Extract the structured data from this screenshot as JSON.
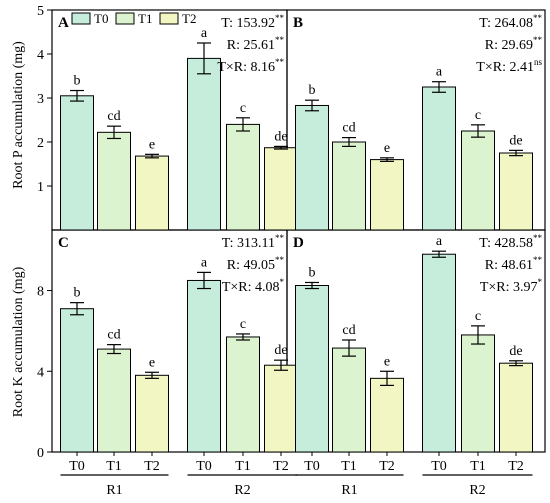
{
  "legend": {
    "entries": [
      {
        "label": "T0",
        "color": "#c6ecdc"
      },
      {
        "label": "T1",
        "color": "#dcf3cf"
      },
      {
        "label": "T2",
        "color": "#f1f6c2"
      }
    ]
  },
  "colors": {
    "T0": "#c6ecdc",
    "T1": "#dcf3cf",
    "T2": "#f1f6c2",
    "stroke": "#000000"
  },
  "y_axis_labels": {
    "top": "Root P accumulation (mg)",
    "bottom": "Root K accumulation (mg)"
  },
  "x_groups": [
    "R1",
    "R2"
  ],
  "chart_data": [
    {
      "type": "bar",
      "panel": "A",
      "ylabel": "Root P accumulation (mg)",
      "ylim": [
        0,
        5
      ],
      "yticks": [
        1,
        2,
        3,
        4,
        5
      ],
      "groups": [
        "R1",
        "R2"
      ],
      "categories": [
        "T0",
        "T1",
        "T2"
      ],
      "series": [
        {
          "group": "R1",
          "values": [
            3.05,
            2.22,
            1.68
          ],
          "errors": [
            0.12,
            0.14,
            0.04
          ],
          "letters": [
            "b",
            "cd",
            "e"
          ]
        },
        {
          "group": "R2",
          "values": [
            3.9,
            2.4,
            1.87
          ],
          "errors": [
            0.35,
            0.15,
            0.03
          ],
          "letters": [
            "a",
            "c",
            "de"
          ]
        }
      ],
      "stats": [
        {
          "text": "T: 153.92",
          "sig": "**"
        },
        {
          "text": "R: 25.61",
          "sig": "**"
        },
        {
          "text": "T×R: 8.16",
          "sig": "**"
        }
      ]
    },
    {
      "type": "bar",
      "panel": "B",
      "ylabel": "",
      "ylim": [
        0,
        5
      ],
      "yticks": [
        1,
        2,
        3,
        4,
        5
      ],
      "groups": [
        "R1",
        "R2"
      ],
      "categories": [
        "T0",
        "T1",
        "T2"
      ],
      "series": [
        {
          "group": "R1",
          "values": [
            2.83,
            2.0,
            1.6
          ],
          "errors": [
            0.12,
            0.1,
            0.04
          ],
          "letters": [
            "b",
            "cd",
            "e"
          ]
        },
        {
          "group": "R2",
          "values": [
            3.25,
            2.25,
            1.75
          ],
          "errors": [
            0.12,
            0.14,
            0.06
          ],
          "letters": [
            "a",
            "c",
            "de"
          ]
        }
      ],
      "stats": [
        {
          "text": "T: 264.08",
          "sig": "**"
        },
        {
          "text": "R: 29.69",
          "sig": "**"
        },
        {
          "text": "T×R: 2.41",
          "sig": "ns"
        }
      ]
    },
    {
      "type": "bar",
      "panel": "C",
      "ylabel": "Root K accumulation (mg)",
      "ylim": [
        0,
        11
      ],
      "yticks": [
        0,
        4,
        8
      ],
      "groups": [
        "R1",
        "R2"
      ],
      "categories": [
        "T0",
        "T1",
        "T2"
      ],
      "series": [
        {
          "group": "R1",
          "values": [
            7.1,
            5.1,
            3.8
          ],
          "errors": [
            0.3,
            0.22,
            0.15
          ],
          "letters": [
            "b",
            "cd",
            "e"
          ]
        },
        {
          "group": "R2",
          "values": [
            8.5,
            5.7,
            4.3
          ],
          "errors": [
            0.4,
            0.15,
            0.25
          ],
          "letters": [
            "a",
            "c",
            "de"
          ]
        }
      ],
      "stats": [
        {
          "text": "T: 313.11",
          "sig": "**"
        },
        {
          "text": "R: 49.05",
          "sig": "**"
        },
        {
          "text": "T×R: 4.08",
          "sig": "*"
        }
      ]
    },
    {
      "type": "bar",
      "panel": "D",
      "ylabel": "",
      "ylim": [
        0,
        11
      ],
      "yticks": [
        0,
        4,
        8
      ],
      "groups": [
        "R1",
        "R2"
      ],
      "categories": [
        "T0",
        "T1",
        "T2"
      ],
      "series": [
        {
          "group": "R1",
          "values": [
            8.25,
            5.15,
            3.65
          ],
          "errors": [
            0.15,
            0.4,
            0.35
          ],
          "letters": [
            "b",
            "cd",
            "e"
          ]
        },
        {
          "group": "R2",
          "values": [
            9.8,
            5.8,
            4.4
          ],
          "errors": [
            0.15,
            0.45,
            0.12
          ],
          "letters": [
            "a",
            "c",
            "de"
          ]
        }
      ],
      "stats": [
        {
          "text": "T: 428.58",
          "sig": "**"
        },
        {
          "text": "R: 48.61",
          "sig": "**"
        },
        {
          "text": "T×R: 3.97",
          "sig": "*"
        }
      ]
    }
  ]
}
